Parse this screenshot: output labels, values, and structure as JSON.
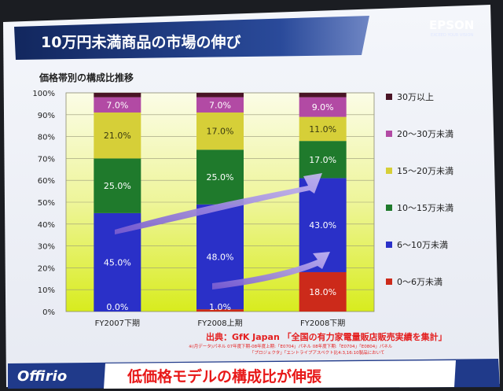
{
  "slide": {
    "title": "10万円未満商品の市場の伸び",
    "brand": "EPSON",
    "brand_tagline": "EXCEED YOUR VISION",
    "chart_heading": "価格帯別の構成比推移",
    "source_line": "出典：GfK Japan 「全国の有力家電量販店販売実績を集計」",
    "footnote1": "※(月データ)パネル 07年度下期-08年度上期:「E0704」パネル 08年度下期:「E0704」「E0804」パネル",
    "footnote2": "「プロジェクタ」「エントライプアスペクト比4:3,16:10製品において",
    "footer_logo": "Offirio",
    "footer_message": "低価格モデルの構成比が伸張"
  },
  "colors": {
    "band_0_6": "#cc2a1a",
    "band_6_10": "#2a30c8",
    "band_10_15": "#1f7a2c",
    "band_15_20": "#d6cf38",
    "band_20_30": "#b24aa4",
    "band_30plus": "#4a1526",
    "title_bar": "#1a2f6e",
    "footer_text": "#e81818"
  },
  "chart_data": {
    "type": "bar",
    "stacked": true,
    "categories": [
      "FY2007下期",
      "FY2008上期",
      "FY2008下期"
    ],
    "series": [
      {
        "name": "0～6万未満",
        "values": [
          0.0,
          1.0,
          18.0
        ],
        "labels": [
          "0.0%",
          "1.0%",
          "18.0%"
        ]
      },
      {
        "name": "6～10万未満",
        "values": [
          45.0,
          48.0,
          43.0
        ],
        "labels": [
          "45.0%",
          "48.0%",
          "43.0%"
        ]
      },
      {
        "name": "10～15万未満",
        "values": [
          25.0,
          25.0,
          17.0
        ],
        "labels": [
          "25.0%",
          "25.0%",
          "17.0%"
        ]
      },
      {
        "name": "15～20万未満",
        "values": [
          21.0,
          17.0,
          11.0
        ],
        "labels": [
          "21.0%",
          "17.0%",
          "11.0%"
        ]
      },
      {
        "name": "20～30万未満",
        "values": [
          7.0,
          7.0,
          9.0
        ],
        "labels": [
          "7.0%",
          "7.0%",
          "9.0%"
        ]
      },
      {
        "name": "30万以上",
        "values": [
          2.0,
          2.0,
          2.0
        ],
        "labels": [
          "",
          "",
          ""
        ]
      }
    ],
    "y_ticks": [
      "0%",
      "10%",
      "20%",
      "30%",
      "40%",
      "50%",
      "60%",
      "70%",
      "80%",
      "90%",
      "100%"
    ],
    "ylim": [
      0,
      100
    ],
    "legend": "right",
    "grid": true
  }
}
